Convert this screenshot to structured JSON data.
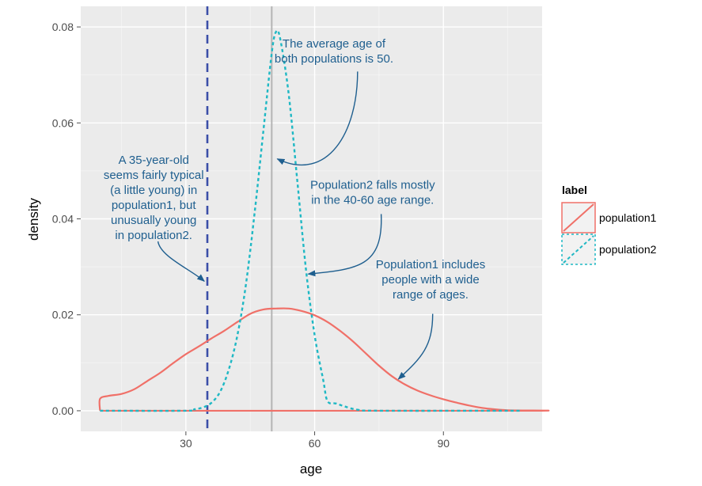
{
  "chart_data": {
    "type": "line",
    "xlabel": "age",
    "ylabel": "density",
    "xlim": [
      5.5,
      113
    ],
    "ylim": [
      -0.0043,
      0.0843
    ],
    "x_ticks": [
      30,
      60,
      90
    ],
    "y_ticks": [
      0.0,
      0.02,
      0.04,
      0.06,
      0.08
    ],
    "x_tick_labels": [
      "30",
      "60",
      "90"
    ],
    "y_tick_labels": [
      "0.00",
      "0.02",
      "0.04",
      "0.06",
      "0.08"
    ],
    "grid": true,
    "legend": {
      "title": "label",
      "position": "right"
    },
    "series": [
      {
        "name": "population1",
        "color": "#f07068",
        "dash": "solid",
        "points": [
          [
            10,
            0.0
          ],
          [
            10,
            0.0025
          ],
          [
            12,
            0.0031
          ],
          [
            15,
            0.0035
          ],
          [
            18,
            0.0045
          ],
          [
            21,
            0.0062
          ],
          [
            24,
            0.0079
          ],
          [
            27,
            0.0099
          ],
          [
            30,
            0.0118
          ],
          [
            33,
            0.0134
          ],
          [
            36,
            0.0151
          ],
          [
            39,
            0.0167
          ],
          [
            42,
            0.0185
          ],
          [
            45,
            0.0202
          ],
          [
            48,
            0.0211
          ],
          [
            51,
            0.0213
          ],
          [
            54,
            0.0213
          ],
          [
            57,
            0.0208
          ],
          [
            60,
            0.0199
          ],
          [
            63,
            0.0185
          ],
          [
            66,
            0.0166
          ],
          [
            69,
            0.0144
          ],
          [
            72,
            0.0119
          ],
          [
            75,
            0.0094
          ],
          [
            78,
            0.0072
          ],
          [
            81,
            0.0055
          ],
          [
            84,
            0.0042
          ],
          [
            87,
            0.0032
          ],
          [
            90,
            0.0024
          ],
          [
            93,
            0.0017
          ],
          [
            96,
            0.0011
          ],
          [
            99,
            0.0006
          ],
          [
            102,
            0.0003
          ],
          [
            105,
            0.0001
          ],
          [
            108,
            0.0
          ],
          [
            10,
            0.0
          ]
        ]
      },
      {
        "name": "population2",
        "color": "#1fb8c4",
        "dash": "dotted",
        "points": [
          [
            10,
            0.0
          ],
          [
            30,
            0.0
          ],
          [
            32,
            0.0003
          ],
          [
            34,
            0.0007
          ],
          [
            36,
            0.0017
          ],
          [
            38,
            0.004
          ],
          [
            40,
            0.0086
          ],
          [
            42,
            0.0157
          ],
          [
            44,
            0.0264
          ],
          [
            46,
            0.0411
          ],
          [
            48,
            0.0579
          ],
          [
            50,
            0.0745
          ],
          [
            51,
            0.079
          ],
          [
            52,
            0.0774
          ],
          [
            54,
            0.0657
          ],
          [
            56,
            0.0475
          ],
          [
            58,
            0.0293
          ],
          [
            60,
            0.0157
          ],
          [
            62,
            0.0064
          ],
          [
            63,
            0.002
          ],
          [
            65,
            0.0015
          ],
          [
            67,
            0.0009
          ],
          [
            70,
            0.0002
          ],
          [
            75,
            0.0
          ],
          [
            108,
            0.0
          ]
        ]
      }
    ],
    "reference_lines": [
      {
        "name": "average-age",
        "x": 50,
        "color": "#b4b4b4",
        "style": "solid"
      },
      {
        "name": "age-35",
        "x": 35,
        "color": "#3b4ea8",
        "style": "dashed"
      }
    ],
    "annotations": [
      {
        "lines": [
          "The average age of",
          "both populations is 50."
        ],
        "text_at": [
          64.5,
          0.0757
        ],
        "arrow": [
          [
            70,
            0.0707
          ],
          [
            70,
            0.058
          ],
          [
            63,
            0.0475
          ],
          [
            51.3,
            0.0525
          ]
        ]
      },
      {
        "lines": [
          "A 35-year-old",
          "seems fairly typical",
          "(a little young) in",
          "population1, but",
          "unusually young",
          "in population2."
        ],
        "text_at": [
          22.5,
          0.0515
        ],
        "arrow": [
          [
            23.5,
            0.0353
          ],
          [
            24,
            0.0322
          ],
          [
            31,
            0.0295
          ],
          [
            34.3,
            0.027
          ]
        ]
      },
      {
        "lines": [
          "Population2 falls mostly",
          "in the 40-60 age range."
        ],
        "text_at": [
          73.5,
          0.0463
        ],
        "arrow": [
          [
            75.5,
            0.041
          ],
          [
            76,
            0.03
          ],
          [
            70,
            0.0295
          ],
          [
            58.5,
            0.0285
          ]
        ]
      },
      {
        "lines": [
          "Population1 includes",
          "people with a wide",
          "range of ages."
        ],
        "text_at": [
          87,
          0.0297
        ],
        "arrow": [
          [
            87.5,
            0.0202
          ],
          [
            87.5,
            0.0135
          ],
          [
            85,
            0.0111
          ],
          [
            79.5,
            0.0066
          ]
        ]
      }
    ]
  }
}
